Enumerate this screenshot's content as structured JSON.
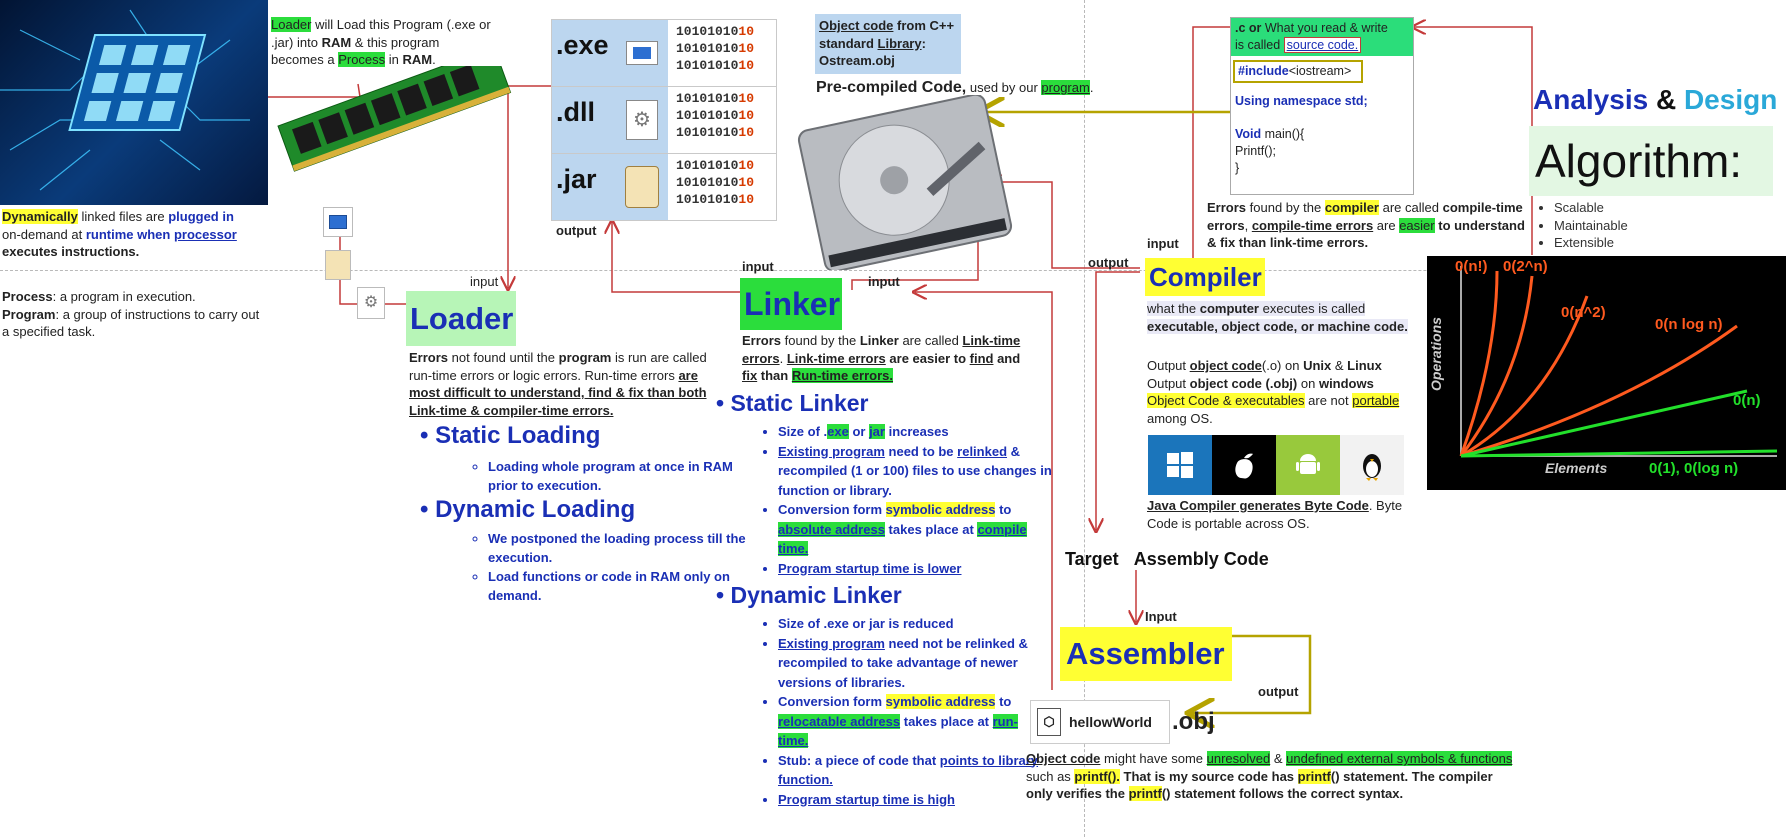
{
  "dividers": "",
  "cpu_caption": {
    "p1": "Dynamically",
    "p2": " linked files are ",
    "p3": "plugged in",
    "p4": "on-demand at ",
    "p5": "runtime when ",
    "p6": "processor",
    "p7": "executes instructions."
  },
  "process_def": {
    "t1": "Process",
    "t2": ": a program in execution.",
    "t3": "Program",
    "t4": ": a group of instructions to carry out a specified task."
  },
  "ram_caption": {
    "p1": "Loader",
    "p2": " will Load this Program (.exe or .jar) into ",
    "p3": "RAM",
    "p4": " & this program becomes a ",
    "p5": "Process",
    "p6": " in ",
    "p7": "RAM",
    "p8": "."
  },
  "labels": {
    "input": "input",
    "output": "output",
    "Input": "Input"
  },
  "file_table": [
    {
      "ext": ".exe",
      "icon": "exe-file-icon",
      "bits": [
        "1010101010",
        "1010101010",
        "1010101010"
      ]
    },
    {
      "ext": ".dll",
      "icon": "dll-gear-icon",
      "bits": [
        "1010101010",
        "1010101010",
        "1010101010"
      ]
    },
    {
      "ext": ".jar",
      "icon": "jar-file-icon",
      "bits": [
        "1010101010",
        "1010101010",
        "1010101010"
      ]
    }
  ],
  "objcode_box": {
    "l1a": "Object code",
    "l1b": " from C++",
    "l2a": "standard ",
    "l2b": "Library",
    "l2c": ":",
    "l3": "Ostream.obj"
  },
  "precompiled": {
    "title": "Pre-compiled Code,",
    "rest": " used by our ",
    "prog": "program",
    "dot": "."
  },
  "source_box": {
    "h1": ".c or",
    "h2": " What you read & write",
    "h3": "is called ",
    "h4": "source code.",
    "include1": "#include",
    "include2": "<iostream>",
    "ns": "Using namespace std;",
    "main1": "Void",
    "main2": " main(){",
    "printf": "Printf();",
    "close": "}"
  },
  "errors_compile": {
    "e1": "Errors",
    "e2": " found by the ",
    "e3": "compiler",
    "e4": " are called ",
    "e5": "compile-time errors",
    "e6": ", ",
    "e7": "compile-time errors",
    "e8": " are ",
    "e9": "easier",
    "e10": " to understand & fix than link-time errors."
  },
  "analysis": {
    "a": "Analysis",
    "amp": " & ",
    "d": "Design",
    "algo": "Algorithm:",
    "items": [
      "Scalable",
      "Maintainable",
      "Extensible"
    ]
  },
  "chart": {
    "labels": [
      "0(n!)",
      "0(2^n)",
      "0(n^2)",
      "0(n log n)",
      "0(n)",
      "0(1), 0(log n)"
    ],
    "xlabel": "Elements",
    "ylabel": "Operations",
    "colors": {
      "orange": "#ff5a1f",
      "green": "#22e02b"
    }
  },
  "loader": {
    "title": "Loader",
    "err1": "Errors",
    "err2": " not found until the ",
    "err3": "program",
    "err4": " is run are called run-time errors or logic errors. Run-time errors ",
    "err5": "are most difficult to understand, find & fix than both Link-time & compiler-time errors.",
    "static": "Static Loading",
    "static_items": [
      "Loading whole program at once in RAM prior to execution."
    ],
    "dynamic": "Dynamic Loading",
    "dynamic_items": [
      "We postponed the loading process till the execution.",
      "Load functions or code in RAM only on demand."
    ]
  },
  "linker": {
    "title": "Linker",
    "err1": "Errors",
    "err2": " found by the ",
    "err3": "Linker",
    "err4": "  are called ",
    "err5": "Link-time errors",
    "err6": ". ",
    "err7": "Link-time errors",
    "err8": " are easier to ",
    "err9": "find",
    "err10": " and ",
    "err11": "fix",
    "err12": " than ",
    "err13": "Run-time errors.",
    "static": "Static Linker",
    "s1a": "Size of .",
    "s1b": "exe",
    "s1c": " or ",
    "s1d": "jar",
    "s1e": " increases",
    "s2a": "Existing program",
    "s2b": " need to be ",
    "s2c": "relinked",
    "s2d": " & recompiled (1 or 100) files to use changes in function or library.",
    "s3a": "Conversion form ",
    "s3b": "symbolic address",
    "s3c": " to ",
    "s3d": "absolute address",
    "s3e": " takes place at ",
    "s3f": "compile time.",
    "s4": "Program startup time is lower",
    "dynamic": "Dynamic Linker",
    "d1": "Size of .exe or jar is reduced",
    "d2a": "Existing program",
    "d2b": " need not be relinked & recompiled to take advantage of newer versions of libraries.",
    "d3a": "Conversion form ",
    "d3b": "symbolic address",
    "d3c": " to ",
    "d3d": "relocatable address",
    "d3e": " takes place at ",
    "d3f": "run-time.",
    "d4a": "Stub: a piece of code that ",
    "d4b": "points to library function.",
    "d5": "Program startup time is high"
  },
  "compiler": {
    "title": "Compiler",
    "p1a": "what the ",
    "p1b": "computer",
    "p1c": " executes is called ",
    "p1d": "executable, object code, or machine code.",
    "o1a": "Output ",
    "o1b": "object code",
    "o1c": "(.o) on ",
    "o1d": "Unix",
    "o1e": " & ",
    "o1f": "Linux",
    "o2a": "Output ",
    "o2b": "object code (.obj)",
    "o2c": " on ",
    "o2d": "windows",
    "o3a": "Object Code & executables",
    "o3b": " are not ",
    "o3c": "portable",
    "o3d": " among OS.",
    "java1": "Java Compiler generates Byte Code",
    "java2": ". Byte Code is portable across OS.",
    "os_icons": [
      "windows-logo-icon",
      "apple-logo-icon",
      "android-logo-icon",
      "linux-tux-icon"
    ]
  },
  "target": {
    "a": "Target",
    "b": "Assembly Code"
  },
  "assembler": {
    "title": "Assembler"
  },
  "obj": {
    "file": "hellowWorld",
    "ext": ".obj"
  },
  "obj_caption": {
    "c1": "Object code",
    "c2": " might have some ",
    "c3": "unresolved",
    "c4": " & ",
    "c5": "undefined external symbols & functions",
    "c6": " such as ",
    "c7": "printf().",
    "c8": " That is my source code has ",
    "c9": "printf",
    "c10": "() statement. The compiler only verifies the ",
    "c11": "printf",
    "c12": "() statement follows the correct syntax."
  }
}
